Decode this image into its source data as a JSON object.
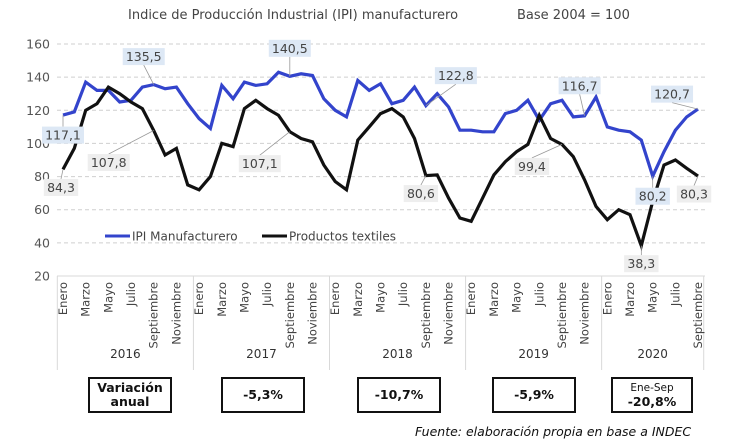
{
  "chart_data": {
    "type": "line",
    "title": "Indice de Producción Industrial (IPI) manufacturero",
    "subtitle": "Base 2004 = 100",
    "xlabel": "",
    "ylabel": "",
    "ylim": [
      20,
      160
    ],
    "yticks": [
      20,
      40,
      60,
      80,
      100,
      120,
      140,
      160
    ],
    "grid": true,
    "legend_position": "center-left",
    "month_tick_labels": [
      "Enero",
      "Marzo",
      "Mayo",
      "Julio",
      "Septiembre",
      "Noviembre"
    ],
    "month_tick_labels_2020": [
      "Enero",
      "Marzo",
      "Mayo",
      "Julio",
      "Septiembre"
    ],
    "years": [
      {
        "label": "2016",
        "months": 12
      },
      {
        "label": "2017",
        "months": 12
      },
      {
        "label": "2018",
        "months": 12
      },
      {
        "label": "2019",
        "months": 12
      },
      {
        "label": "2020",
        "months": 9
      }
    ],
    "series": [
      {
        "name": "IPI Manufacturero",
        "color": "#3344cc",
        "values": [
          117.1,
          119,
          137,
          132,
          132,
          125,
          126,
          134,
          135.5,
          133,
          134,
          124,
          115,
          109,
          135,
          127,
          137,
          135,
          136,
          143,
          140.5,
          142,
          141,
          127,
          120,
          116,
          138,
          132,
          136,
          124,
          126,
          134,
          122.8,
          130,
          122,
          108,
          108,
          107,
          107,
          118,
          120,
          126,
          114,
          124,
          126,
          116,
          116.7,
          128,
          110,
          108,
          107,
          102,
          80.2,
          95,
          108,
          116,
          120.7
        ]
      },
      {
        "name": "Productos textiles",
        "color": "#111111",
        "values": [
          84.3,
          97,
          120,
          124,
          134,
          130,
          125,
          121,
          107.8,
          93,
          97,
          75,
          72,
          80,
          100,
          98,
          121,
          126,
          121,
          117,
          107.1,
          103,
          101,
          87,
          77,
          72,
          102,
          110,
          118,
          121,
          116,
          103,
          80.6,
          81,
          67,
          55,
          53,
          67,
          81,
          89,
          95,
          99.4,
          117,
          103,
          99.4,
          92,
          78,
          62,
          54,
          60,
          57,
          38.3,
          65,
          87,
          90,
          85,
          80.3
        ]
      }
    ],
    "annotations": [
      {
        "series": "IPI Manufacturero",
        "index": 0,
        "text": "117,1"
      },
      {
        "series": "IPI Manufacturero",
        "index": 8,
        "text": "135,5"
      },
      {
        "series": "IPI Manufacturero",
        "index": 20,
        "text": "140,5"
      },
      {
        "series": "IPI Manufacturero",
        "index": 32,
        "text": "122,8"
      },
      {
        "series": "IPI Manufacturero",
        "index": 46,
        "text": "116,7"
      },
      {
        "series": "IPI Manufacturero",
        "index": 52,
        "text": "80,2"
      },
      {
        "series": "IPI Manufacturero",
        "index": 56,
        "text": "120,7"
      },
      {
        "series": "Productos textiles",
        "index": 0,
        "text": "84,3"
      },
      {
        "series": "Productos textiles",
        "index": 8,
        "text": "107,8"
      },
      {
        "series": "Productos textiles",
        "index": 20,
        "text": "107,1"
      },
      {
        "series": "Productos textiles",
        "index": 32,
        "text": "80,6"
      },
      {
        "series": "Productos textiles",
        "index": 44,
        "text": "99,4"
      },
      {
        "series": "Productos textiles",
        "index": 51,
        "text": "38,3"
      },
      {
        "series": "Productos textiles",
        "index": 56,
        "text": "80,3"
      }
    ]
  },
  "variation": {
    "label_line1": "Variación",
    "label_line2": "anual",
    "values": [
      {
        "year": "2017",
        "value": "-5,3%"
      },
      {
        "year": "2018",
        "value": "-10,7%"
      },
      {
        "year": "2019",
        "value": "-5,9%"
      },
      {
        "year": "2020",
        "note": "Ene-Sep",
        "value": "-20,8%"
      }
    ]
  },
  "source": "Fuente: elaboración propia en base a INDEC"
}
